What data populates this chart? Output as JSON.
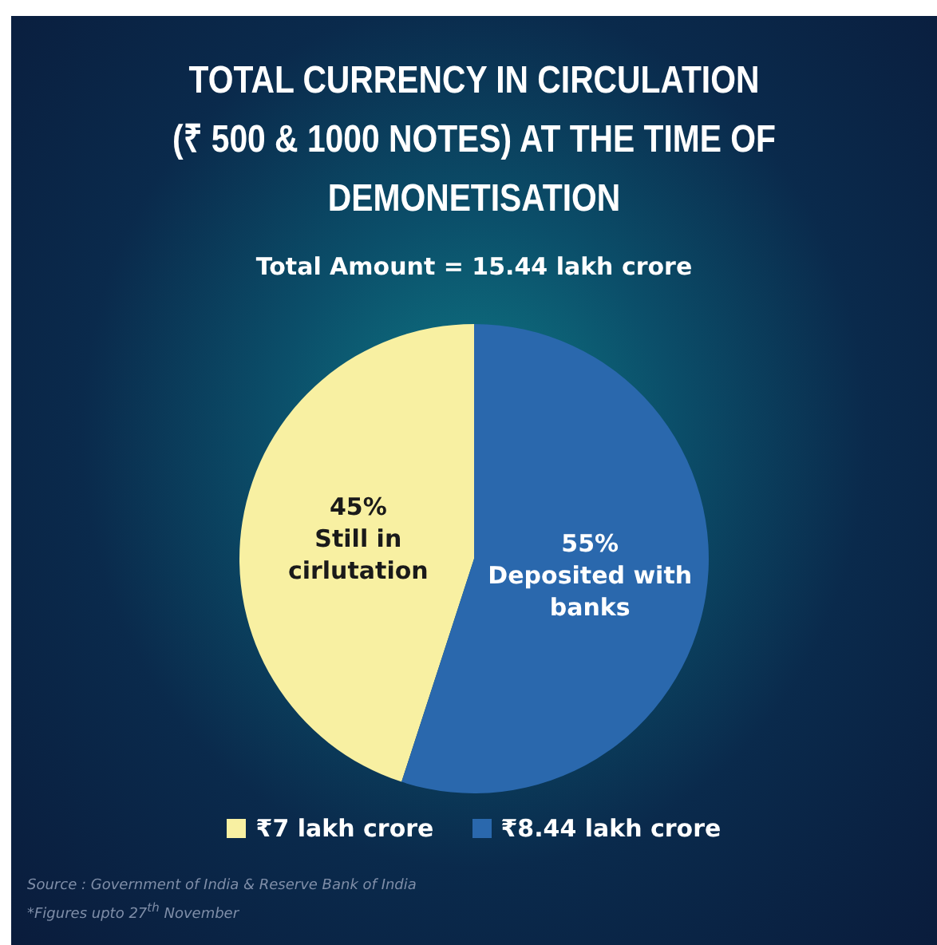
{
  "chart_data": {
    "type": "pie",
    "title": "TOTAL CURRENCY IN CIRCULATION\n(₹ 500 & 1000 NOTES) AT THE TIME OF\nDEMONETISATION",
    "subtitle": "Total Amount = 15.44 lakh crore",
    "categories": [
      "₹7 lakh crore",
      "₹8.44 lakh crore"
    ],
    "values": [
      45,
      55
    ],
    "value_labels": [
      "45%",
      "55%"
    ],
    "colors": [
      "#f8f0a2",
      "#2a68ad"
    ],
    "legend": "bottom",
    "annotations": [
      {
        "text": "Still in cirlutation",
        "x": "₹7 lakh crore"
      },
      {
        "text": "Deposited with banks",
        "x": "₹8.44 lakh crore"
      },
      "Source : Government of India & Reserve Bank of India",
      "*Figures upto 27$^{th}$ November"
    ]
  }
}
